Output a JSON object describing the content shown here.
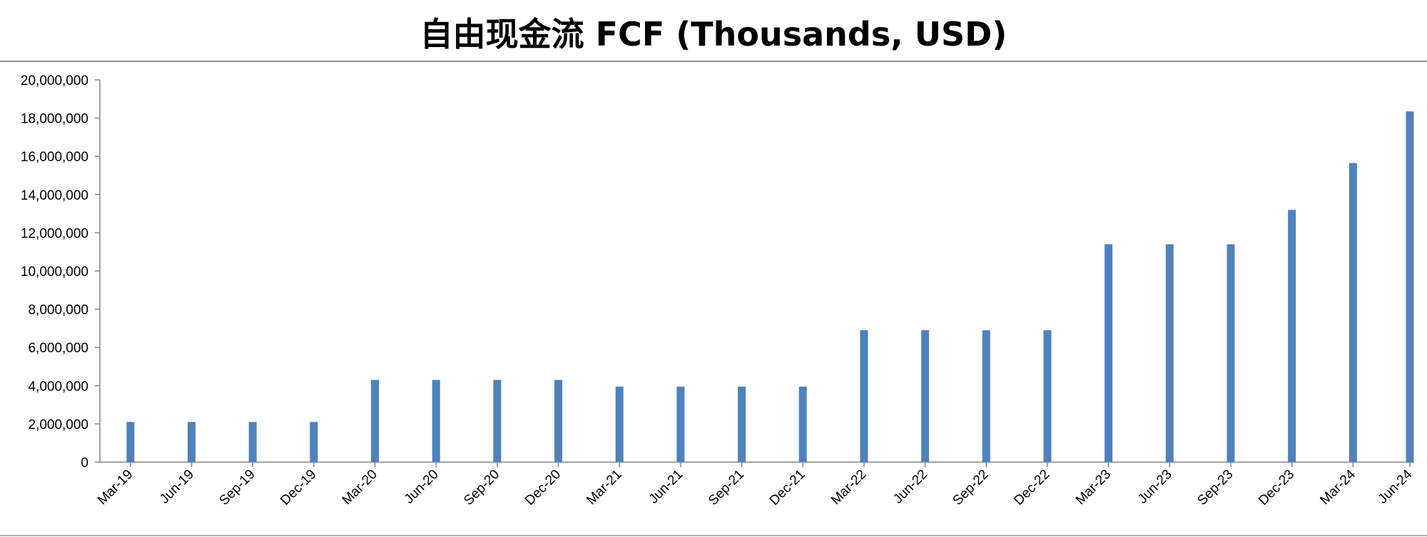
{
  "chart_data": {
    "type": "bar",
    "title": "自由现金流 FCF (Thousands, USD)",
    "categories": [
      "Mar-19",
      "Jun-19",
      "Sep-19",
      "Dec-19",
      "Mar-20",
      "Jun-20",
      "Sep-20",
      "Dec-20",
      "Mar-21",
      "Jun-21",
      "Sep-21",
      "Dec-21",
      "Mar-22",
      "Jun-22",
      "Sep-22",
      "Dec-22",
      "Mar-23",
      "Jun-23",
      "Sep-23",
      "Dec-23",
      "Mar-24",
      "Jun-24"
    ],
    "values": [
      2100000,
      2100000,
      2100000,
      2100000,
      4300000,
      4300000,
      4300000,
      4300000,
      3950000,
      3950000,
      3950000,
      3950000,
      6900000,
      6900000,
      6900000,
      6900000,
      11400000,
      11400000,
      11400000,
      13200000,
      15650000,
      18350000
    ],
    "ylim": [
      0,
      20000000
    ],
    "yticks": [
      0,
      2000000,
      4000000,
      6000000,
      8000000,
      10000000,
      12000000,
      14000000,
      16000000,
      18000000,
      20000000
    ],
    "ytick_labels": [
      "0",
      "2,000,000",
      "4,000,000",
      "6,000,000",
      "8,000,000",
      "10,000,000",
      "12,000,000",
      "14,000,000",
      "16,000,000",
      "18,000,000",
      "20,000,000"
    ],
    "xlabel": "",
    "ylabel": "",
    "grid": false,
    "legend": "none",
    "bar_color": "#4f81bd",
    "axis_color": "#868686"
  }
}
